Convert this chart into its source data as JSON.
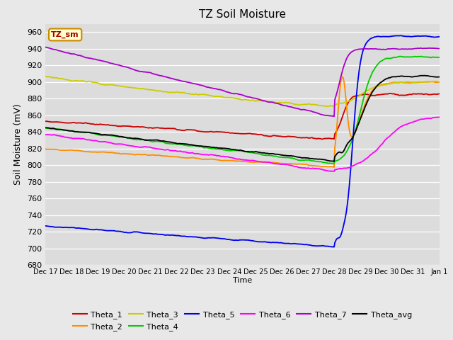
{
  "title": "TZ Soil Moisture",
  "xlabel": "Time",
  "ylabel": "Soil Moisture (mV)",
  "ylim": [
    680,
    970
  ],
  "yticks": [
    680,
    700,
    720,
    740,
    760,
    780,
    800,
    820,
    840,
    860,
    880,
    900,
    920,
    940,
    960
  ],
  "bg_color": "#dcdcdc",
  "fig_bg_color": "#e8e8e8",
  "legend_label": "TZ_sm",
  "series_colors": {
    "Theta_1": "#cc0000",
    "Theta_2": "#ff8c00",
    "Theta_3": "#cccc00",
    "Theta_4": "#00cc00",
    "Theta_5": "#0000ee",
    "Theta_6": "#ff00ff",
    "Theta_7": "#aa00cc",
    "Theta_avg": "#000000"
  },
  "x_tick_labels": [
    "Dec 17",
    "Dec 18",
    "Dec 19",
    "Dec 20",
    "Dec 21",
    "Dec 22",
    "Dec 23",
    "Dec 24",
    "Dec 25",
    "Dec 26",
    "Dec 27",
    "Dec 28",
    "Dec 29",
    "Dec 30",
    "Dec 31",
    "Jan 1"
  ]
}
